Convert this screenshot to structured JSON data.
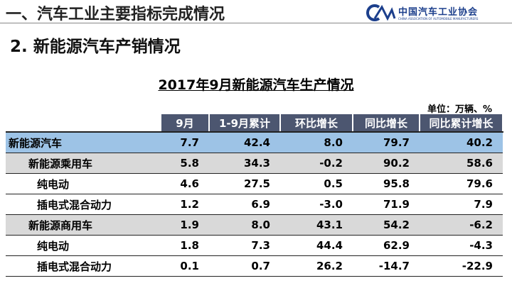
{
  "header": {
    "title": "一、汽车工业主要指标完成情况",
    "subtitle": "2. 新能源汽车产销情况",
    "logo_name": "中国汽车工业协会",
    "logo_tagline": "CHINA ASSOCIATION OF AUTOMOBILE MANUFACTURERS"
  },
  "table": {
    "title": "2017年9月新能源汽车生产情况",
    "unit": "单位：万辆、%",
    "columns": [
      "9月",
      "1-9月累计",
      "环比增长",
      "同比增长",
      "同比累计增长"
    ],
    "rows": [
      [
        "新能源汽车",
        "7.7",
        "42.4",
        "8.0",
        "79.7",
        "40.2"
      ],
      [
        "新能源乘用车",
        "5.8",
        "34.3",
        "-0.2",
        "90.2",
        "58.6"
      ],
      [
        "纯电动",
        "4.6",
        "27.5",
        "0.5",
        "95.8",
        "79.6"
      ],
      [
        "插电式混合动力",
        "1.2",
        "6.9",
        "-3.0",
        "71.9",
        "7.9"
      ],
      [
        "新能源商用车",
        "1.9",
        "8.0",
        "43.1",
        "54.2",
        "-6.2"
      ],
      [
        "纯电动",
        "1.8",
        "7.3",
        "44.4",
        "62.9",
        "-4.3"
      ],
      [
        "插电式混合动力",
        "0.1",
        "0.7",
        "26.2",
        "-14.7",
        "-22.9"
      ]
    ]
  }
}
